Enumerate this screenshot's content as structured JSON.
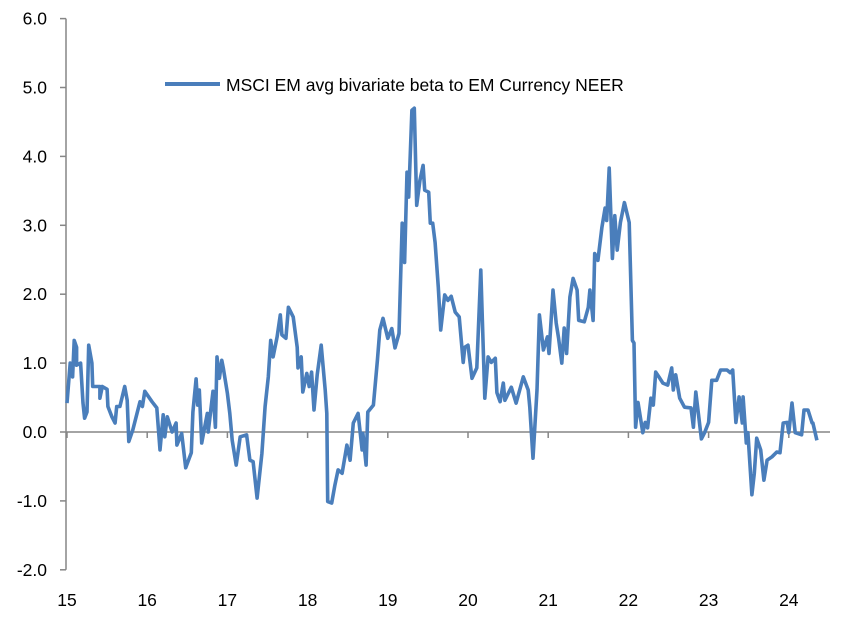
{
  "chart_data": {
    "type": "line",
    "title": "",
    "xlabel": "",
    "ylabel": "",
    "xlim": [
      15,
      24.45
    ],
    "ylim": [
      -2,
      6
    ],
    "x_ticks": [
      15,
      16,
      17,
      18,
      19,
      20,
      21,
      22,
      23,
      24
    ],
    "x_tick_labels": [
      "15",
      "16",
      "17",
      "18",
      "19",
      "20",
      "21",
      "22",
      "23",
      "24"
    ],
    "y_ticks": [
      -2,
      -1,
      0,
      1,
      2,
      3,
      4,
      5,
      6
    ],
    "y_tick_labels": [
      "-2.0",
      "-1.0",
      "0.0",
      "1.0",
      "2.0",
      "3.0",
      "4.0",
      "5.0",
      "6.0"
    ],
    "grid": false,
    "legend_placement": "top-left",
    "color": "#4a7ebb",
    "series": [
      {
        "name": "MSCI EM avg bivariate beta to EM Currency NEER",
        "x": [
          15.0,
          15.04,
          15.07,
          15.09,
          15.12,
          15.12,
          15.17,
          15.2,
          15.22,
          15.25,
          15.27,
          15.31,
          15.32,
          15.41,
          15.41,
          15.44,
          15.5,
          15.51,
          15.56,
          15.6,
          15.62,
          15.66,
          15.72,
          15.75,
          15.77,
          15.82,
          15.91,
          15.94,
          15.97,
          16.06,
          16.12,
          16.16,
          16.2,
          16.22,
          16.25,
          16.31,
          16.36,
          16.37,
          16.43,
          16.48,
          16.55,
          16.57,
          16.61,
          16.63,
          16.65,
          16.68,
          16.75,
          16.76,
          16.82,
          16.85,
          16.87,
          16.9,
          16.93,
          16.95,
          17.0,
          17.03,
          17.06,
          17.11,
          17.16,
          17.24,
          17.28,
          17.32,
          17.37,
          17.43,
          17.47,
          17.51,
          17.54,
          17.57,
          17.62,
          17.66,
          17.68,
          17.73,
          17.76,
          17.82,
          17.87,
          17.88,
          17.92,
          17.94,
          17.99,
          18.02,
          18.05,
          18.08,
          18.12,
          18.17,
          18.22,
          18.24,
          18.25,
          18.3,
          18.34,
          18.38,
          18.43,
          18.49,
          18.53,
          18.57,
          18.63,
          18.68,
          18.69,
          18.73,
          18.75,
          18.82,
          18.87,
          18.9,
          18.94,
          19.0,
          19.05,
          19.09,
          19.14,
          19.18,
          19.21,
          19.24,
          19.26,
          19.3,
          19.33,
          19.36,
          19.4,
          19.44,
          19.46,
          19.51,
          19.53,
          19.56,
          19.59,
          19.63,
          19.66,
          19.71,
          19.75,
          19.79,
          19.84,
          19.89,
          19.94,
          19.96,
          20.0,
          20.05,
          20.11,
          20.16,
          20.21,
          20.25,
          20.29,
          20.34,
          20.36,
          20.4,
          20.44,
          20.46,
          20.54,
          20.6,
          20.69,
          20.75,
          20.77,
          20.81,
          20.86,
          20.89,
          20.94,
          20.99,
          21.01,
          21.06,
          21.1,
          21.13,
          21.17,
          21.2,
          21.23,
          21.27,
          21.31,
          21.36,
          21.38,
          21.45,
          21.5,
          21.52,
          21.56,
          21.58,
          21.62,
          21.67,
          21.71,
          21.73,
          21.76,
          21.8,
          21.83,
          21.86,
          21.9,
          21.95,
          22.01,
          22.05,
          22.07,
          22.09,
          22.12,
          22.18,
          22.21,
          22.24,
          22.28,
          22.31,
          22.34,
          22.38,
          22.43,
          22.49,
          22.54,
          22.56,
          22.59,
          22.64,
          22.7,
          22.78,
          22.81,
          22.84,
          22.91,
          22.95,
          23.0,
          23.04,
          23.1,
          23.15,
          23.23,
          23.27,
          23.3,
          23.34,
          23.38,
          23.42,
          23.43,
          23.47,
          23.49,
          23.54,
          23.57,
          23.6,
          23.65,
          23.69,
          23.73,
          23.79,
          23.85,
          23.89,
          23.93,
          23.98,
          24.0,
          24.04,
          24.08,
          24.16,
          24.19,
          24.24,
          24.29,
          24.3,
          24.35
        ],
        "y": [
          0.42,
          1.0,
          0.8,
          1.33,
          1.23,
          0.97,
          1.0,
          0.42,
          0.2,
          0.29,
          1.26,
          1.0,
          0.66,
          0.66,
          0.49,
          0.66,
          0.62,
          0.37,
          0.22,
          0.13,
          0.37,
          0.37,
          0.66,
          0.46,
          -0.14,
          0.03,
          0.44,
          0.37,
          0.59,
          0.44,
          0.35,
          -0.26,
          0.25,
          -0.07,
          0.22,
          0.0,
          0.13,
          -0.19,
          -0.02,
          -0.52,
          -0.3,
          0.29,
          0.77,
          0.39,
          0.61,
          -0.16,
          0.27,
          0.0,
          0.59,
          0.07,
          1.09,
          0.78,
          1.04,
          0.92,
          0.56,
          0.27,
          -0.12,
          -0.48,
          -0.07,
          -0.04,
          -0.41,
          -0.43,
          -0.96,
          -0.31,
          0.37,
          0.8,
          1.33,
          1.09,
          1.38,
          1.7,
          1.41,
          1.36,
          1.81,
          1.67,
          1.23,
          0.93,
          1.09,
          0.58,
          0.85,
          0.66,
          0.87,
          0.32,
          0.83,
          1.26,
          0.61,
          0.27,
          -1.01,
          -1.03,
          -0.77,
          -0.55,
          -0.6,
          -0.19,
          -0.41,
          0.13,
          0.27,
          -0.26,
          -0.02,
          -0.48,
          0.29,
          0.39,
          1.04,
          1.48,
          1.65,
          1.36,
          1.5,
          1.22,
          1.43,
          3.03,
          2.46,
          3.77,
          3.41,
          4.67,
          4.7,
          3.29,
          3.65,
          3.87,
          3.51,
          3.48,
          3.03,
          3.03,
          2.75,
          2.1,
          1.48,
          1.99,
          1.91,
          1.97,
          1.74,
          1.67,
          1.01,
          1.23,
          1.26,
          0.78,
          0.93,
          2.35,
          0.49,
          1.09,
          1.01,
          1.07,
          0.57,
          0.44,
          0.71,
          0.46,
          0.65,
          0.42,
          0.8,
          0.61,
          0.36,
          -0.38,
          0.61,
          1.7,
          1.19,
          1.38,
          1.14,
          2.06,
          1.58,
          1.36,
          1.0,
          1.51,
          1.14,
          1.96,
          2.23,
          2.06,
          1.62,
          1.6,
          1.81,
          2.06,
          1.62,
          2.59,
          2.49,
          2.97,
          3.25,
          3.07,
          3.83,
          2.52,
          3.14,
          2.64,
          3.04,
          3.33,
          3.04,
          1.33,
          1.29,
          0.07,
          0.43,
          -0.01,
          0.14,
          0.06,
          0.49,
          0.39,
          0.87,
          0.8,
          0.71,
          0.68,
          0.93,
          0.61,
          0.83,
          0.49,
          0.36,
          0.35,
          0.07,
          0.58,
          -0.1,
          -0.01,
          0.14,
          0.75,
          0.75,
          0.9,
          0.9,
          0.86,
          0.9,
          0.14,
          0.51,
          0.13,
          0.51,
          -0.16,
          -0.01,
          -0.91,
          -0.6,
          -0.09,
          -0.26,
          -0.7,
          -0.41,
          -0.36,
          -0.29,
          -0.3,
          0.13,
          0.14,
          -0.01,
          0.42,
          -0.01,
          -0.04,
          0.32,
          0.32,
          0.13,
          0.13,
          -0.12
        ]
      }
    ]
  }
}
